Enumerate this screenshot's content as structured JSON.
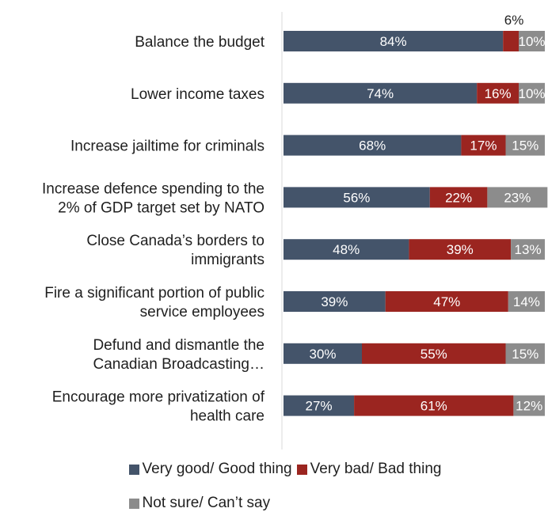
{
  "chart_data": {
    "type": "bar",
    "orientation": "horizontal",
    "stacked": true,
    "categories": [
      [
        "Balance the budget"
      ],
      [
        "Lower income taxes"
      ],
      [
        "Increase jailtime for criminals"
      ],
      [
        "Increase defence spending to the",
        "2% of GDP target set by NATO"
      ],
      [
        "Close Canada’s borders to",
        "immigrants"
      ],
      [
        "Fire a significant portion of public",
        "service employees"
      ],
      [
        "Defund and dismantle the",
        "Canadian Broadcasting…"
      ],
      [
        "Encourage more privatization of",
        "health care"
      ]
    ],
    "series": [
      {
        "name": "Very good/ Good thing",
        "color": "#44546a",
        "values": [
          84,
          74,
          68,
          56,
          48,
          39,
          30,
          27
        ]
      },
      {
        "name": "Very bad/ Bad thing",
        "color": "#9b2520",
        "values": [
          6,
          16,
          17,
          22,
          39,
          47,
          55,
          61
        ]
      },
      {
        "name": "Not sure/ Can’t say",
        "color": "#8c8c8c",
        "values": [
          10,
          10,
          15,
          23,
          13,
          14,
          15,
          12
        ]
      }
    ],
    "value_labels": [
      [
        "84%",
        "6%",
        "10%"
      ],
      [
        "74%",
        "16%",
        "10%"
      ],
      [
        "68%",
        "17%",
        "15%"
      ],
      [
        "56%",
        "22%",
        "23%"
      ],
      [
        "48%",
        "39%",
        "13%"
      ],
      [
        "39%",
        "47%",
        "14%"
      ],
      [
        "30%",
        "55%",
        "15%"
      ],
      [
        "27%",
        "61%",
        "12%"
      ]
    ],
    "xlim": [
      0,
      100
    ],
    "legend_position": "bottom"
  }
}
